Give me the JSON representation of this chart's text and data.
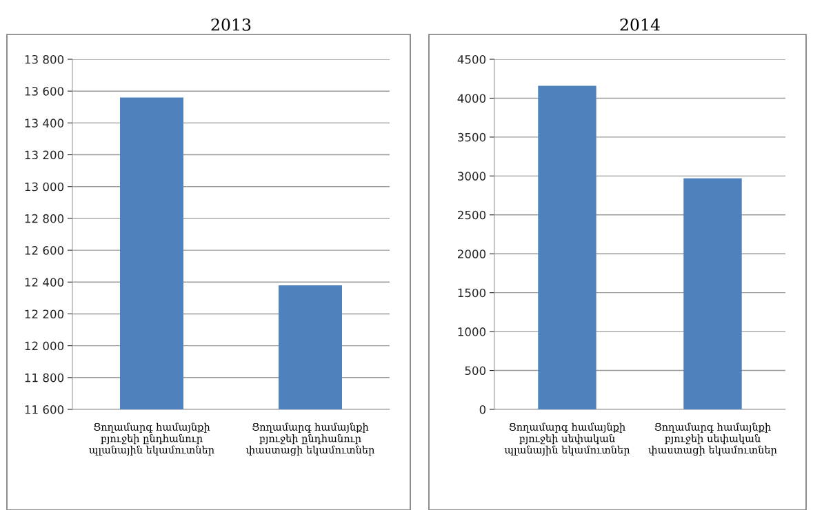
{
  "chart_data": [
    {
      "type": "bar",
      "title": "2013",
      "categories": [
        "Ցողամարգ համայնքի\nբյուջեի ընդհանուր\nպլանային եկամուտներ",
        "Ցողամարգ համայնքի\nբյուջեի ընդհանուր\nփաստացի եկամուտներ"
      ],
      "values": [
        13560,
        12380
      ],
      "color": "#4f81bd",
      "ylim": [
        11600,
        13800
      ],
      "yticks": [
        {
          "value": 11600,
          "label": "11 600"
        },
        {
          "value": 11800,
          "label": "11 800"
        },
        {
          "value": 12000,
          "label": "12 000"
        },
        {
          "value": 12200,
          "label": "12 200"
        },
        {
          "value": 12400,
          "label": "12 400"
        },
        {
          "value": 12600,
          "label": "12 600"
        },
        {
          "value": 12800,
          "label": "12 800"
        },
        {
          "value": 13000,
          "label": "13 000"
        },
        {
          "value": 13200,
          "label": "13 200"
        },
        {
          "value": 13400,
          "label": "13 400"
        },
        {
          "value": 13600,
          "label": "13 600"
        },
        {
          "value": 13800,
          "label": "13 800"
        }
      ],
      "grid": "y",
      "legend": false
    },
    {
      "type": "bar",
      "title": "2014",
      "categories": [
        "Ցողամարգ համայնքի\nբյուջեի սեփական\nպլանային եկամուտներ",
        "Ցողամարգ համայնքի\nբյուջեի սեփական\nփաստացի եկամուտներ"
      ],
      "values": [
        4160,
        2970
      ],
      "color": "#4f81bd",
      "ylim": [
        0,
        4500
      ],
      "yticks": [
        0,
        500,
        1000,
        1500,
        2000,
        2500,
        3000,
        3500,
        4000,
        4500
      ],
      "grid": "y",
      "legend": false
    }
  ]
}
